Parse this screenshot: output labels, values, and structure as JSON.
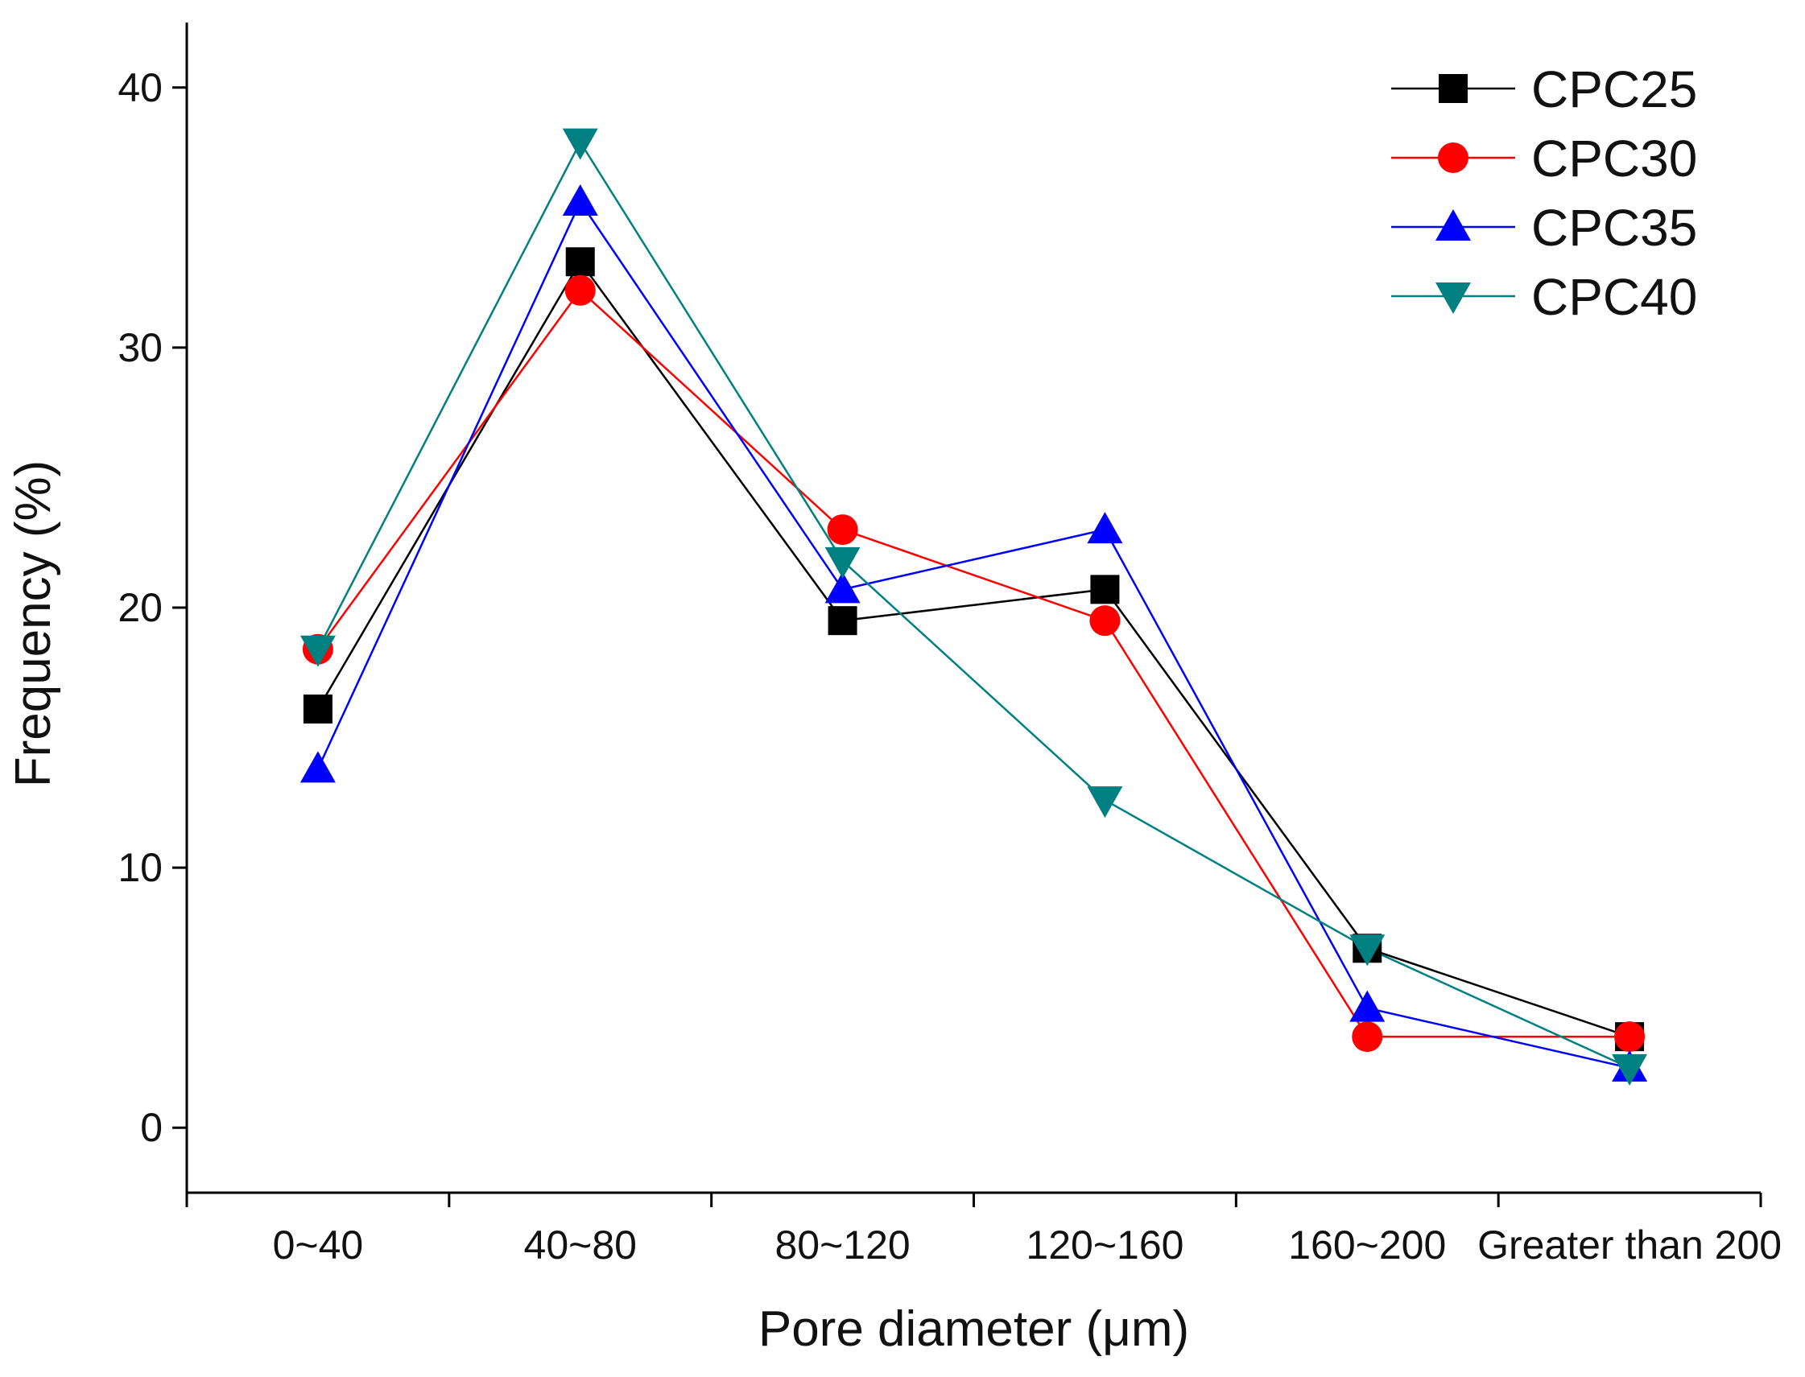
{
  "chart_data": {
    "type": "line",
    "title": "",
    "xlabel": "Pore diameter (μm)",
    "ylabel": "Frequency (%)",
    "ylim": [
      -2.5,
      42.5
    ],
    "yticks": [
      0,
      10,
      20,
      30,
      40
    ],
    "ytick_labels": [
      "0",
      "10",
      "20",
      "30",
      "40"
    ],
    "categories": [
      "0~40",
      "40~80",
      "80~120",
      "120~160",
      "160~200",
      "Greater than 200"
    ],
    "grid": false,
    "legend_position": "top-right",
    "series": [
      {
        "name": "CPC25",
        "color": "#000000",
        "marker": "square",
        "values": [
          16.1,
          33.3,
          19.5,
          20.7,
          6.9,
          3.5
        ]
      },
      {
        "name": "CPC30",
        "color": "#ff0000",
        "marker": "circle",
        "values": [
          18.4,
          32.2,
          23.0,
          19.5,
          3.5,
          3.5
        ]
      },
      {
        "name": "CPC35",
        "color": "#0000ff",
        "marker": "triangle-up",
        "values": [
          13.8,
          35.6,
          20.7,
          23.0,
          4.6,
          2.3
        ]
      },
      {
        "name": "CPC40",
        "color": "#008080",
        "marker": "triangle-down",
        "values": [
          18.4,
          37.9,
          21.8,
          12.6,
          6.9,
          2.3
        ]
      }
    ]
  }
}
